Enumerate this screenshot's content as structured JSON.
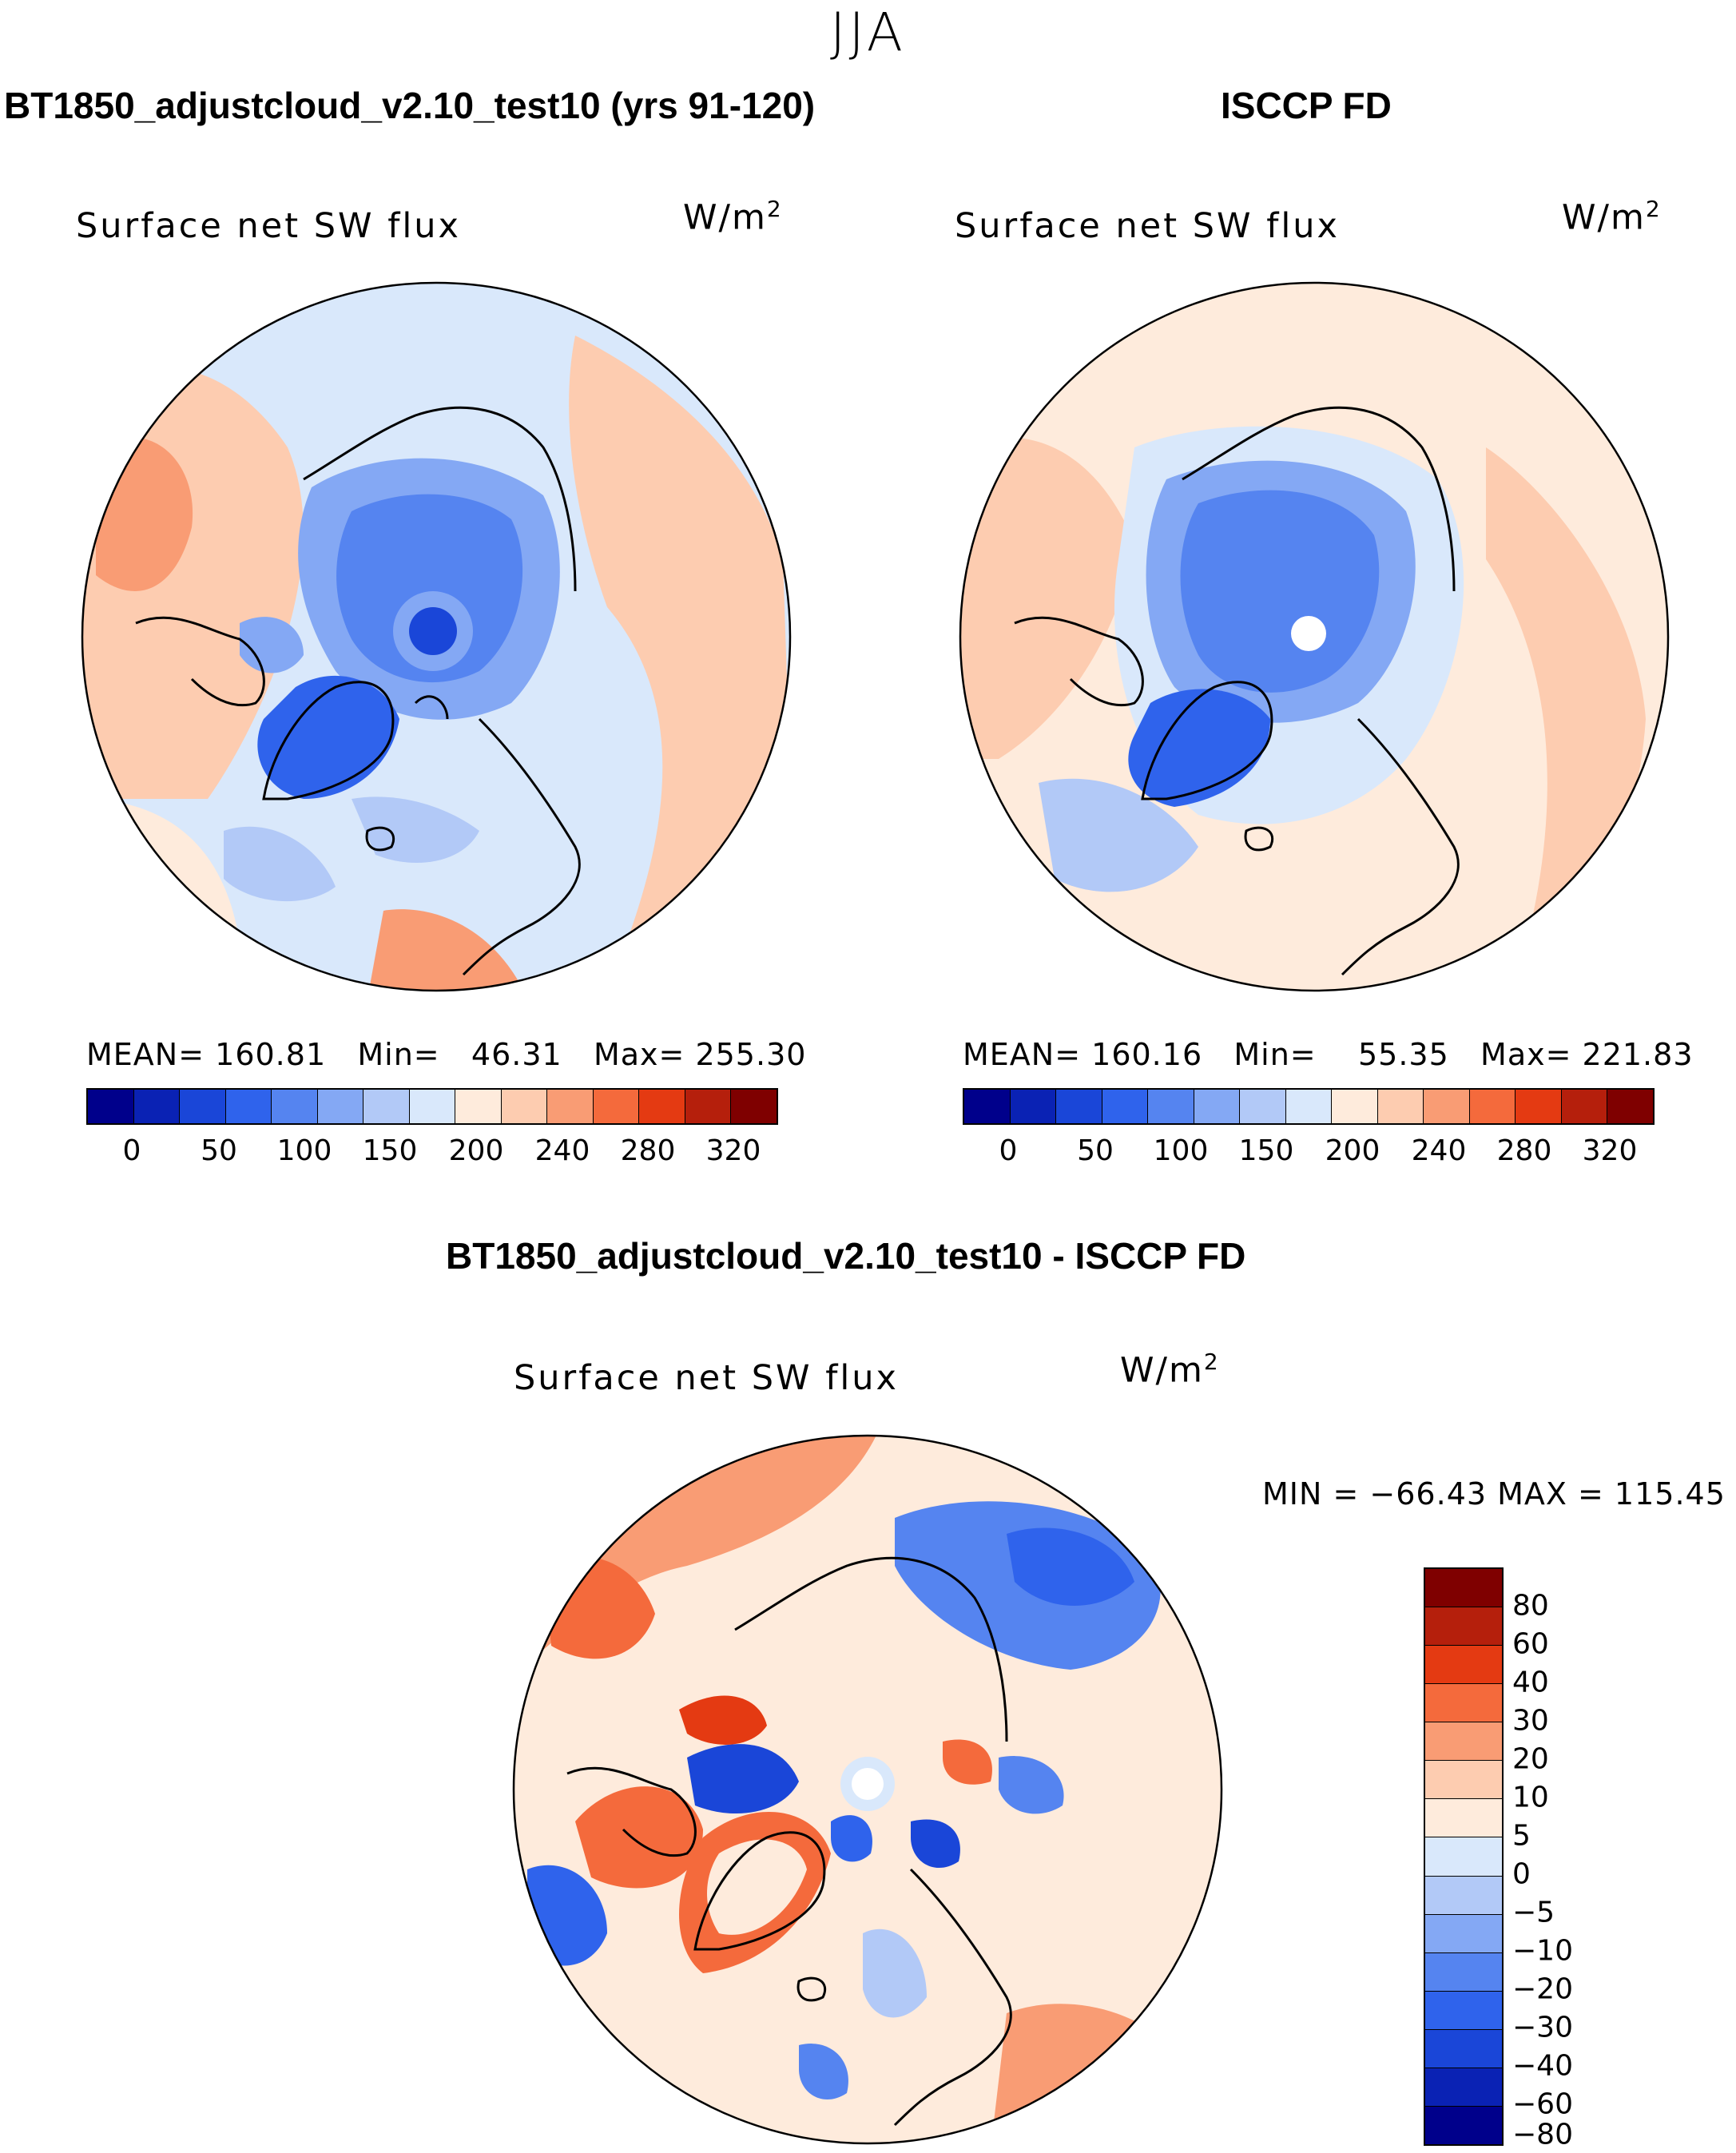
{
  "season": "JJA",
  "panels": [
    {
      "title": "BT1850_adjustcloud_v2.10_test10 (yrs 91-120)",
      "variable": "Surface net SW flux",
      "units_base": "W/m",
      "units_exp": "2",
      "stats": {
        "mean_label": "MEAN=",
        "mean": "160.81",
        "min_label": "Min=",
        "min": "46.31",
        "max_label": "Max=",
        "max": "255.30"
      },
      "colorbar_ticks": [
        "0",
        "50",
        "100",
        "150",
        "200",
        "240",
        "280",
        "320"
      ]
    },
    {
      "title": "ISCCP FD",
      "variable": "Surface net SW flux",
      "units_base": "W/m",
      "units_exp": "2",
      "stats": {
        "mean_label": "MEAN=",
        "mean": "160.16",
        "min_label": "Min=",
        "min": "55.35",
        "max_label": "Max=",
        "max": "221.83"
      },
      "colorbar_ticks": [
        "0",
        "50",
        "100",
        "150",
        "200",
        "240",
        "280",
        "320"
      ]
    }
  ],
  "diff_panel": {
    "title": "BT1850_adjustcloud_v2.10_test10 - ISCCP FD",
    "variable": "Surface net SW flux",
    "units_base": "W/m",
    "units_exp": "2",
    "minmax": "MIN = −66.43 MAX = 115.45",
    "colorbar_ticks": [
      "80",
      "60",
      "40",
      "30",
      "20",
      "10",
      "5",
      "0",
      "−5",
      "−10",
      "−20",
      "−30",
      "−40",
      "−60",
      "−80"
    ]
  },
  "colors": {
    "field_scale": [
      "#00008b",
      "#0a22b4",
      "#1a46d8",
      "#2f63ec",
      "#5584f0",
      "#84a8f4",
      "#b2c9f7",
      "#d9e8fb",
      "#feebdc",
      "#fdccb0",
      "#f99c74",
      "#f46a3c",
      "#e43a12",
      "#b51f0c",
      "#7f0000"
    ],
    "diff_scale": [
      "#7f0000",
      "#b51f0c",
      "#e43a12",
      "#f46a3c",
      "#f99c74",
      "#fdccb0",
      "#feebdc",
      "#d9e8fb",
      "#b2c9f7",
      "#84a8f4",
      "#5584f0",
      "#2f63ec",
      "#1a46d8",
      "#0a22b4",
      "#00008b"
    ]
  }
}
